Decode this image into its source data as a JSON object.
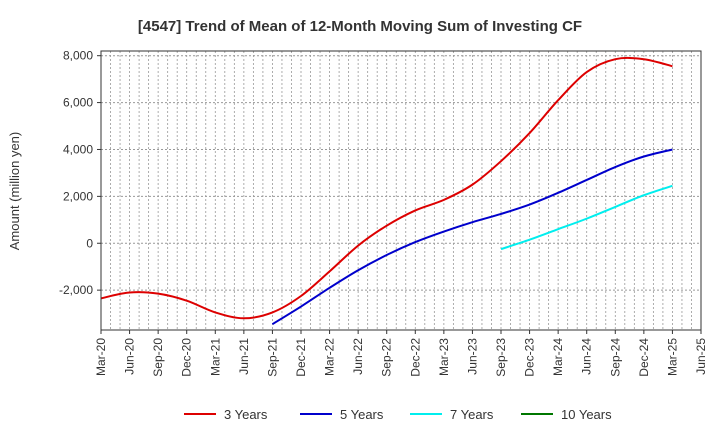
{
  "chart_data": {
    "type": "line",
    "title": "[4547]  Trend of Mean of 12-Month Moving Sum of Investing CF",
    "xlabel": "",
    "ylabel": "Amount (million yen)",
    "ylim": [
      -3700,
      8200
    ],
    "yticks": [
      -2000,
      0,
      2000,
      4000,
      6000,
      8000
    ],
    "ytick_labels": [
      "-2,000",
      "0",
      "2,000",
      "4,000",
      "6,000",
      "8,000"
    ],
    "grid": true,
    "legend_position": "bottom",
    "x_tick_labels": [
      "Mar-20",
      "Jun-20",
      "Sep-20",
      "Dec-20",
      "Mar-21",
      "Jun-21",
      "Sep-21",
      "Dec-21",
      "Mar-22",
      "Jun-22",
      "Sep-22",
      "Dec-22",
      "Mar-23",
      "Jun-23",
      "Sep-23",
      "Dec-23",
      "Mar-24",
      "Jun-24",
      "Sep-24",
      "Dec-24",
      "Mar-25",
      "Jun-25"
    ],
    "x_range_months": [
      0,
      63
    ],
    "series": [
      {
        "name": "3 Years",
        "color": "#dd0000",
        "points": [
          [
            0,
            -2350
          ],
          [
            3,
            -2100
          ],
          [
            6,
            -2150
          ],
          [
            9,
            -2450
          ],
          [
            12,
            -2950
          ],
          [
            15,
            -3200
          ],
          [
            18,
            -2950
          ],
          [
            21,
            -2250
          ],
          [
            24,
            -1200
          ],
          [
            27,
            -100
          ],
          [
            30,
            750
          ],
          [
            33,
            1400
          ],
          [
            36,
            1850
          ],
          [
            39,
            2500
          ],
          [
            42,
            3500
          ],
          [
            45,
            4700
          ],
          [
            48,
            6100
          ],
          [
            51,
            7300
          ],
          [
            54,
            7850
          ],
          [
            57,
            7850
          ],
          [
            60,
            7550
          ]
        ]
      },
      {
        "name": "5 Years",
        "color": "#0000cc",
        "points": [
          [
            18,
            -3450
          ],
          [
            21,
            -2700
          ],
          [
            24,
            -1900
          ],
          [
            27,
            -1150
          ],
          [
            30,
            -500
          ],
          [
            33,
            50
          ],
          [
            36,
            500
          ],
          [
            39,
            900
          ],
          [
            42,
            1250
          ],
          [
            45,
            1650
          ],
          [
            48,
            2150
          ],
          [
            51,
            2700
          ],
          [
            54,
            3250
          ],
          [
            57,
            3700
          ],
          [
            60,
            4000
          ]
        ]
      },
      {
        "name": "7 Years",
        "color": "#00eeee",
        "points": [
          [
            42,
            -250
          ],
          [
            45,
            150
          ],
          [
            48,
            600
          ],
          [
            51,
            1050
          ],
          [
            54,
            1550
          ],
          [
            57,
            2050
          ],
          [
            60,
            2450
          ]
        ]
      },
      {
        "name": "10 Years",
        "color": "#007700",
        "points": []
      }
    ]
  }
}
